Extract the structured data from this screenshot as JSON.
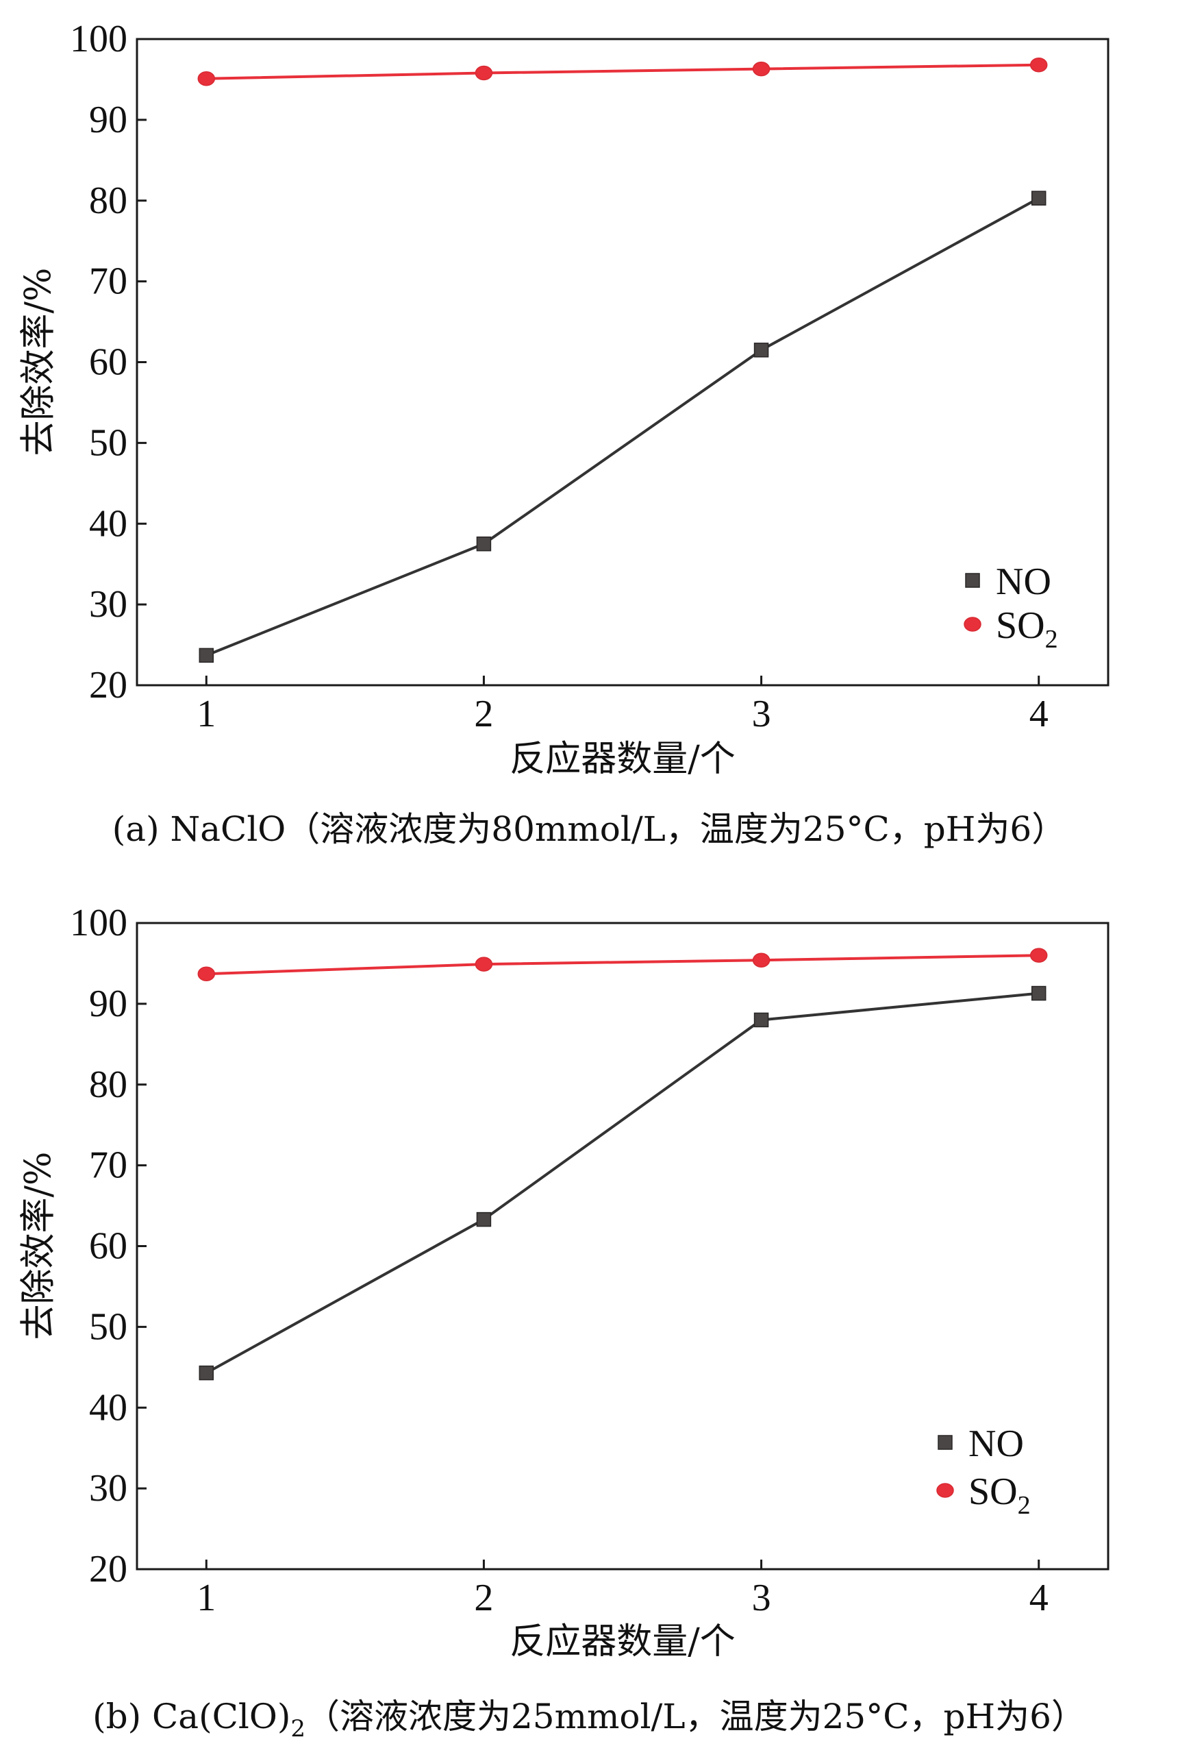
{
  "chart_data": [
    {
      "type": "line",
      "caption": "(a) NaClO（溶液浓度为80mmol/L，温度为25°C，pH为6）",
      "xlabel": "反应器数量/个",
      "ylabel": "去除效率/%",
      "categories": [
        "1",
        "2",
        "3",
        "4"
      ],
      "x": [
        1,
        2,
        3,
        4
      ],
      "xlim": [
        0.75,
        4.25
      ],
      "ylim": [
        20,
        100
      ],
      "yticks": [
        "20",
        "30",
        "40",
        "50",
        "60",
        "70",
        "80",
        "90",
        "100"
      ],
      "legend_position": "bottom-right",
      "series": [
        {
          "name": "NO",
          "label_main": "NO",
          "label_sub": "",
          "marker": "square",
          "color": "#4a4646",
          "line_color": "#333333",
          "values": [
            23.7,
            37.5,
            61.5,
            80.3
          ]
        },
        {
          "name": "SO₂",
          "label_main": "SO",
          "label_sub": "2",
          "marker": "circle",
          "color": "#e8303a",
          "line_color": "#e8303a",
          "values": [
            95.1,
            95.8,
            96.3,
            96.8
          ]
        }
      ]
    },
    {
      "type": "line",
      "caption_main": "(b) Ca(ClO)",
      "caption_sub": "2",
      "caption_rest": "（溶液浓度为25mmol/L，温度为25°C，pH为6）",
      "xlabel": "反应器数量/个",
      "ylabel": "去除效率/%",
      "categories": [
        "1",
        "2",
        "3",
        "4"
      ],
      "x": [
        1,
        2,
        3,
        4
      ],
      "xlim": [
        0.75,
        4.25
      ],
      "ylim": [
        20,
        100
      ],
      "yticks": [
        "20",
        "30",
        "40",
        "50",
        "60",
        "70",
        "80",
        "90",
        "100"
      ],
      "legend_position": "bottom-right",
      "series": [
        {
          "name": "NO",
          "label_main": "NO",
          "label_sub": "",
          "marker": "square",
          "color": "#4a4646",
          "line_color": "#333333",
          "values": [
            44.3,
            63.3,
            88.0,
            91.3
          ]
        },
        {
          "name": "SO₂",
          "label_main": "SO",
          "label_sub": "2",
          "marker": "circle",
          "color": "#e8303a",
          "line_color": "#e8303a",
          "values": [
            93.7,
            94.9,
            95.4,
            96.0
          ]
        }
      ]
    }
  ]
}
